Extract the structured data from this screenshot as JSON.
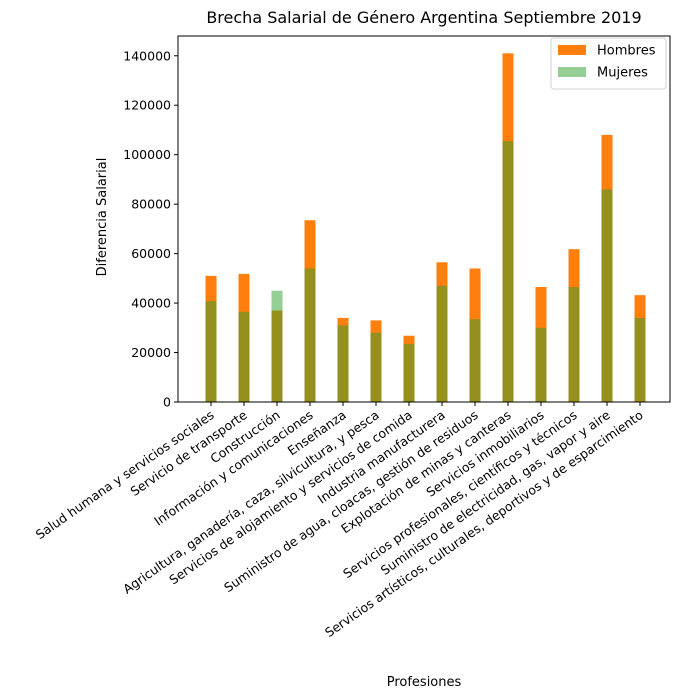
{
  "chart_data": {
    "type": "bar",
    "title": "Brecha Salarial de Género Argentina Septiembre 2019",
    "xlabel": "Profesiones",
    "ylabel": "Diferencia Salarial",
    "ylim": [
      0,
      148000
    ],
    "yticks": [
      0,
      20000,
      40000,
      60000,
      80000,
      100000,
      120000,
      140000
    ],
    "ytick_labels": [
      "0",
      "20000",
      "40000",
      "60000",
      "80000",
      "100000",
      "120000",
      "140000"
    ],
    "grid": false,
    "legend_position": "top-right",
    "categories": [
      "Salud humana y servicios sociales",
      "Servicio de transporte",
      "Construcción",
      "Información y comunicaciones",
      "Enseñanza",
      "Agricultura, ganadería, caza, silvicultura, y pesca",
      "Servicios de alojamiento y servicios de comida",
      "Industria manufacturera",
      "Suministro de agua, cloacas, gestión de residuos",
      "Explotación de minas y canteras",
      "Servicios inmobiliarios",
      "Servicios profesionales, científicos y técnicos",
      "Suministro de electricidad, gas, vapor y aire",
      "Servicios artísticos, culturales, deportivos y de esparcimiento"
    ],
    "series": [
      {
        "name": "Hombres",
        "color": "#ff7f0e",
        "opacity": 1.0,
        "values": [
          51000,
          51800,
          37000,
          73500,
          34000,
          33000,
          26800,
          56500,
          54000,
          141000,
          46500,
          61800,
          108000,
          43200
        ]
      },
      {
        "name": "Mujeres",
        "color": "#2ca02c",
        "opacity": 0.5,
        "values": [
          40800,
          36500,
          45000,
          54000,
          31000,
          28000,
          23500,
          47000,
          33500,
          105500,
          30000,
          46500,
          86000,
          34000
        ]
      }
    ]
  }
}
